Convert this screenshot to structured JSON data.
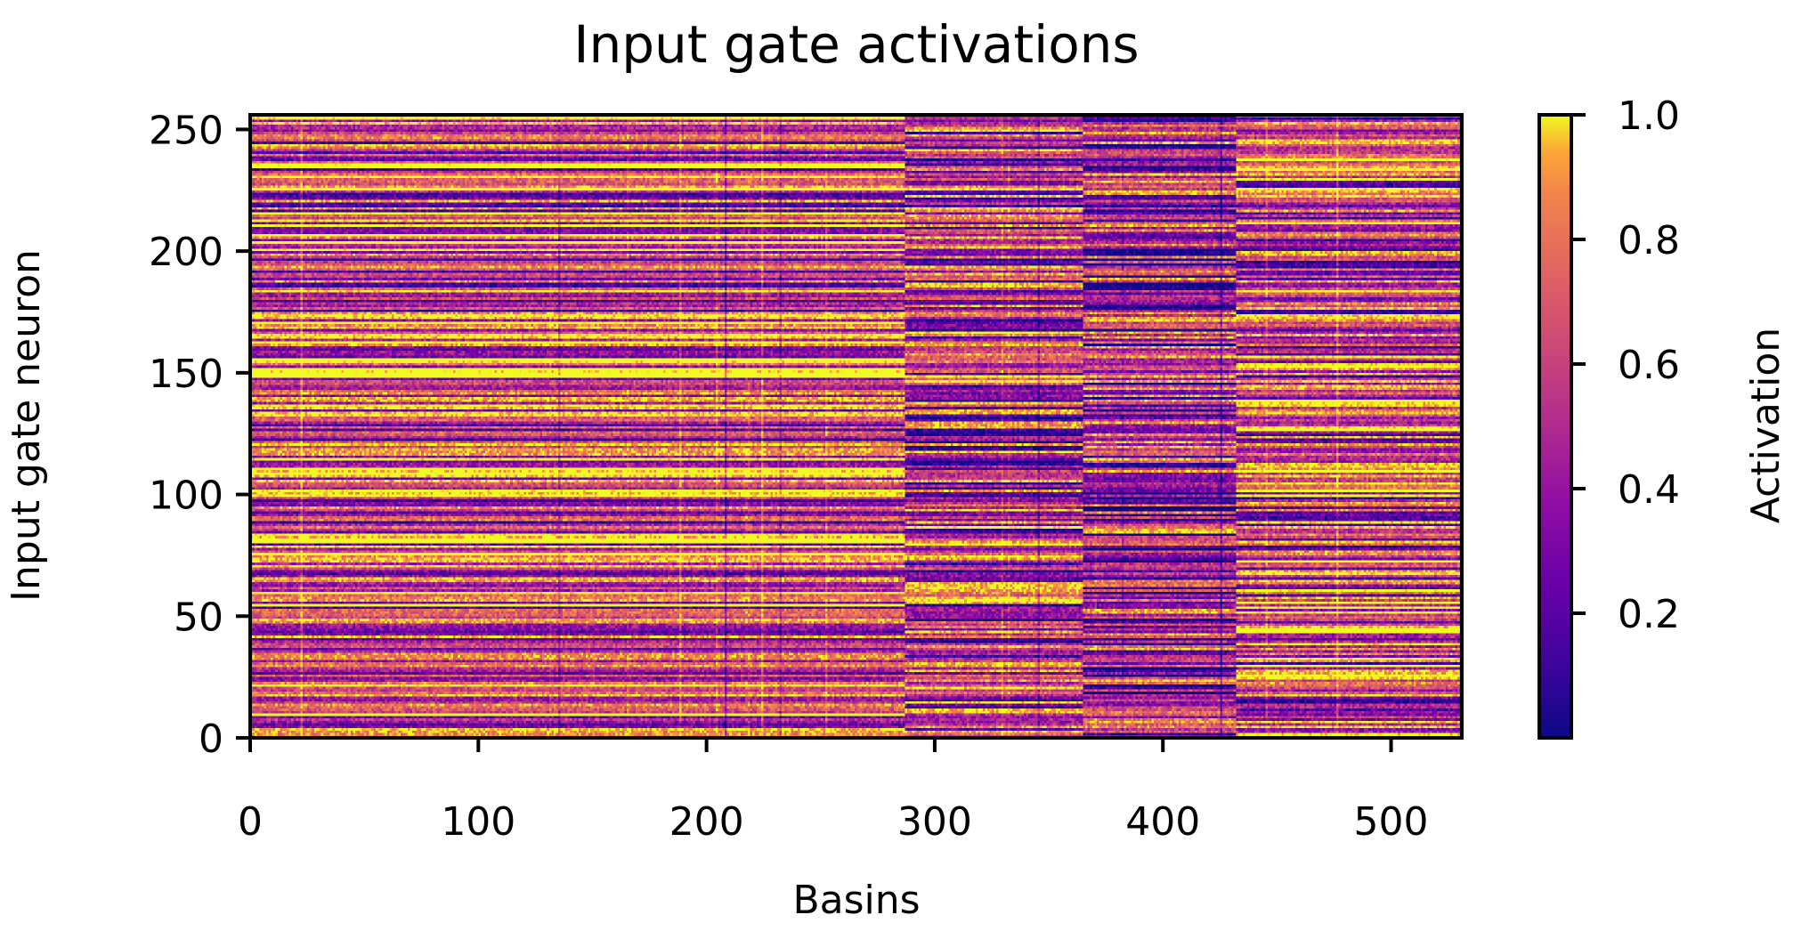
{
  "chart_data": {
    "type": "heatmap",
    "title": "Input gate activations",
    "xlabel": "Basins",
    "ylabel": "Input gate neuron",
    "colorbar_label": "Activation",
    "colormap": "plasma",
    "xlim": [
      0,
      531
    ],
    "ylim": [
      0,
      256
    ],
    "n_basins": 531,
    "n_neurons": 256,
    "xticks": [
      0,
      100,
      200,
      300,
      400,
      500
    ],
    "yticks": [
      0,
      50,
      100,
      150,
      200,
      250
    ],
    "colorbar_range": [
      0.0,
      1.0
    ],
    "colorbar_ticks": [
      "0.2",
      "0.4",
      "0.6",
      "0.8",
      "1.0"
    ],
    "basin_segments": [
      {
        "basin_range": [
          0,
          287
        ],
        "mean_activation": 0.65
      },
      {
        "basin_range": [
          287,
          365
        ],
        "mean_activation": 0.55
      },
      {
        "basin_range": [
          365,
          432
        ],
        "mean_activation": 0.45
      },
      {
        "basin_range": [
          432,
          531
        ],
        "mean_activation": 0.62
      }
    ],
    "colors": {
      "low": "#0d0887",
      "mid": "#cc4778",
      "high": "#f0f921"
    }
  }
}
